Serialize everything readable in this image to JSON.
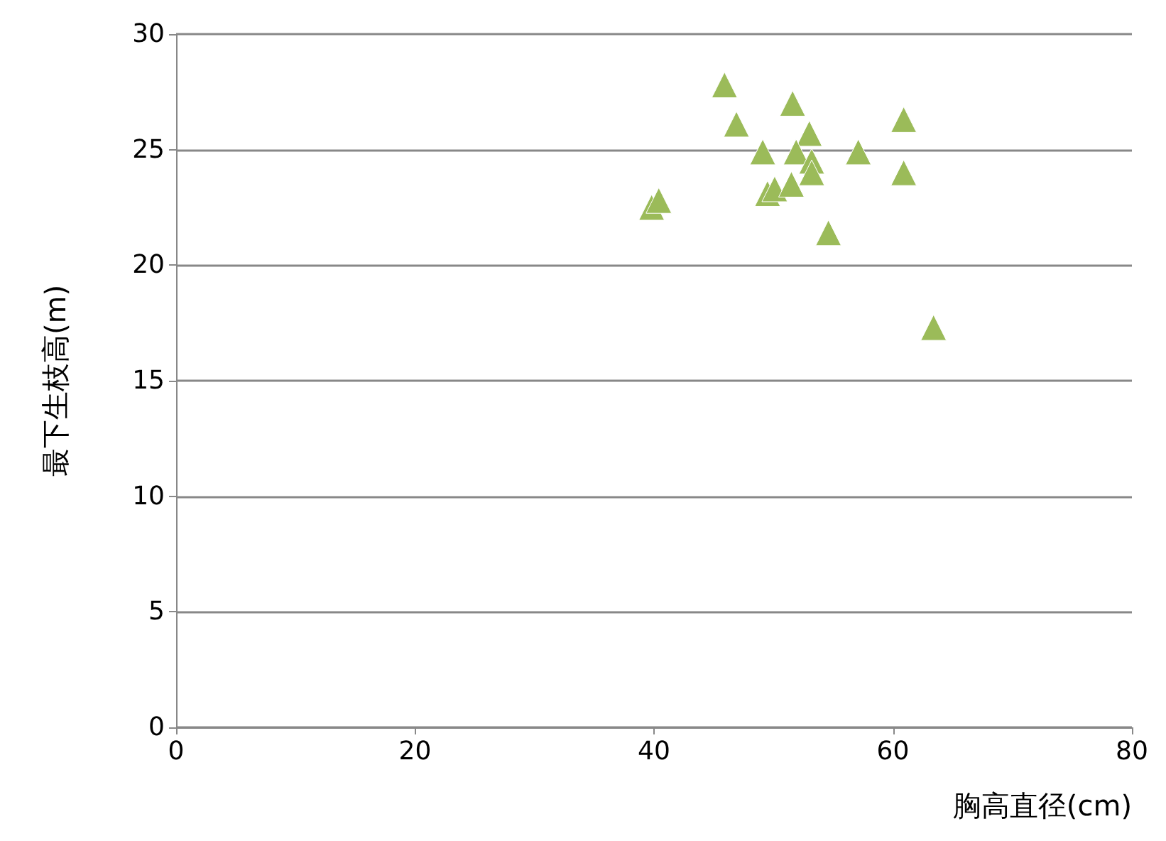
{
  "chart_data": {
    "type": "scatter",
    "xlabel": "胸高直径(cm)",
    "ylabel": "最下生枝高(m)",
    "xlim": [
      0,
      80
    ],
    "xticks": [
      0,
      20,
      40,
      60,
      80
    ],
    "ylim": [
      0,
      30
    ],
    "yticks": [
      0,
      5,
      10,
      15,
      20,
      25,
      30
    ],
    "grid": "y",
    "marker": "triangle",
    "series": [
      {
        "color": "#9bbb59",
        "x": [
          45.9,
          46.9,
          51.6,
          49.1,
          53.0,
          51.9,
          53.2,
          53.2,
          57.1,
          60.9,
          60.9,
          49.5,
          50.1,
          51.5,
          39.8,
          40.4,
          54.6,
          63.4
        ],
        "values": [
          27.8,
          26.1,
          27.0,
          24.9,
          25.7,
          24.9,
          24.5,
          24.0,
          24.9,
          26.3,
          24.0,
          23.1,
          23.3,
          23.5,
          22.5,
          22.8,
          21.4,
          17.3
        ]
      }
    ]
  }
}
